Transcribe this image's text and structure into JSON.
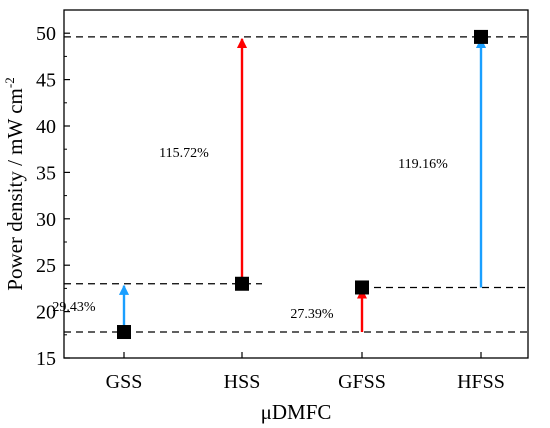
{
  "chart_data": {
    "type": "scatter",
    "xlabel": "μDMFC",
    "ylabel": "Power density / mW cm",
    "ylabel_sup": "-2",
    "categories": [
      "GSS",
      "HSS",
      "GFSS",
      "HFSS"
    ],
    "values": [
      17.8,
      23.0,
      22.6,
      49.6
    ],
    "ylim": [
      15,
      52.5
    ],
    "yticks": [
      15,
      20,
      25,
      30,
      35,
      40,
      45,
      50
    ],
    "yminor_step": 2.5,
    "grid": false,
    "reference_lines": [
      49.6,
      23.0,
      22.6,
      17.8
    ],
    "arrows": [
      {
        "category": "GSS",
        "from": 17.8,
        "to": 23.0,
        "label": "29.43%",
        "color": "#1a9fff"
      },
      {
        "category": "HSS",
        "from": 23.0,
        "to": 49.6,
        "label": "115.72%",
        "color": "#ff0000"
      },
      {
        "category": "GFSS",
        "from": 17.8,
        "to": 22.6,
        "label": "27.39%",
        "color": "#ff0000"
      },
      {
        "category": "HFSS",
        "from": 22.6,
        "to": 49.6,
        "label": "119.16%",
        "color": "#1a9fff"
      }
    ],
    "marker_color": "#000000"
  }
}
